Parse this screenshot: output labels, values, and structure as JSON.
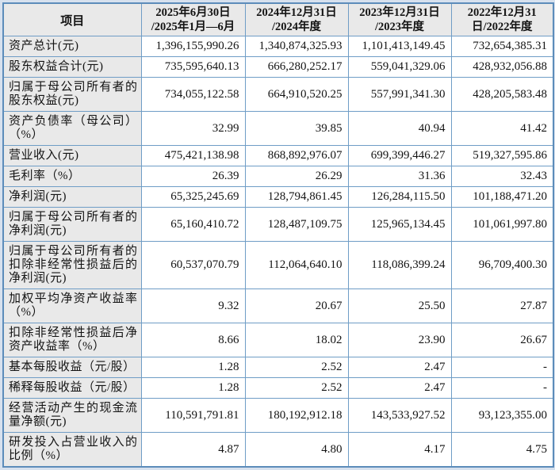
{
  "page": {
    "background_color": "#d7e1ee",
    "border_color": "#6f9dc6",
    "outer_border_color": "#5c8cba",
    "header_bg_color": "#e9e9e9",
    "data_cell_bg_color": "#ffffff"
  },
  "table": {
    "corner_header": "项目",
    "columns": [
      "2025年6月30日\n/2025年1月—6月",
      "2024年12月31日\n/2024年度",
      "2023年12月31日\n/2023年度",
      "2022年12月31\n日/2022年度"
    ],
    "rows": [
      {
        "label": "资产总计(元)",
        "values": [
          "1,396,155,990.26",
          "1,340,874,325.93",
          "1,101,413,149.45",
          "732,654,385.31"
        ]
      },
      {
        "label": "股东权益合计(元)",
        "values": [
          "735,595,640.13",
          "666,280,252.17",
          "559,041,329.06",
          "428,932,056.88"
        ]
      },
      {
        "label": "归属于母公司所有者的股东权益(元)",
        "values": [
          "734,055,122.58",
          "664,910,520.25",
          "557,991,341.30",
          "428,205,583.48"
        ]
      },
      {
        "label": "资产负债率（母公司）（%）",
        "values": [
          "32.99",
          "39.85",
          "40.94",
          "41.42"
        ]
      },
      {
        "label": "营业收入(元)",
        "values": [
          "475,421,138.98",
          "868,892,976.07",
          "699,399,446.27",
          "519,327,595.86"
        ]
      },
      {
        "label": "毛利率（%）",
        "values": [
          "26.39",
          "26.29",
          "31.36",
          "32.43"
        ]
      },
      {
        "label": "净利润(元)",
        "values": [
          "65,325,245.69",
          "128,794,861.45",
          "126,284,115.50",
          "101,188,471.20"
        ]
      },
      {
        "label": "归属于母公司所有者的净利润(元)",
        "values": [
          "65,160,410.72",
          "128,487,109.75",
          "125,965,134.45",
          "101,061,997.80"
        ]
      },
      {
        "label": "归属于母公司所有者的扣除非经常性损益后的净利润(元)",
        "values": [
          "60,537,070.79",
          "112,064,640.10",
          "118,086,399.24",
          "96,709,400.30"
        ]
      },
      {
        "label": "加权平均净资产收益率（%）",
        "values": [
          "9.32",
          "20.67",
          "25.50",
          "27.87"
        ]
      },
      {
        "label": "扣除非经常性损益后净资产收益率（%）",
        "values": [
          "8.66",
          "18.02",
          "23.90",
          "26.67"
        ]
      },
      {
        "label": "基本每股收益（元/股）",
        "values": [
          "1.28",
          "2.52",
          "2.47",
          "-"
        ]
      },
      {
        "label": "稀释每股收益（元/股）",
        "values": [
          "1.28",
          "2.52",
          "2.47",
          "-"
        ]
      },
      {
        "label": "经营活动产生的现金流量净额(元)",
        "values": [
          "110,591,791.81",
          "180,192,912.18",
          "143,533,927.52",
          "93,123,355.00"
        ]
      },
      {
        "label": "研发投入占营业收入的比例（%）",
        "values": [
          "4.87",
          "4.80",
          "4.17",
          "4.75"
        ]
      }
    ]
  }
}
